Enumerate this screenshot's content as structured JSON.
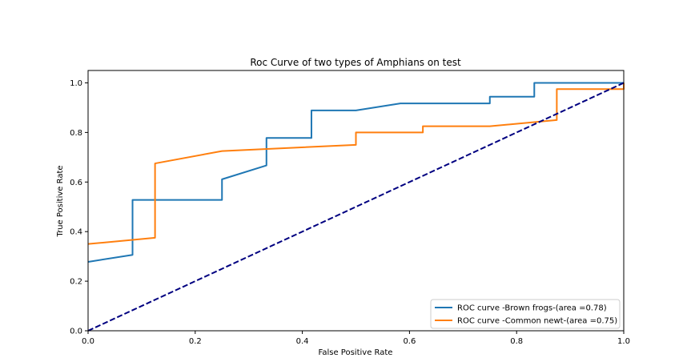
{
  "chart_data": {
    "type": "line",
    "title": "Roc Curve of two types of Amphians on test",
    "xlabel": "False Positive Rate",
    "ylabel": "True Positive Rate",
    "xlim": [
      0,
      1
    ],
    "ylim": [
      0,
      1.05
    ],
    "xticks": [
      "0.0",
      "0.2",
      "0.4",
      "0.6",
      "0.8",
      "1.0"
    ],
    "yticks": [
      "0.0",
      "0.2",
      "0.4",
      "0.6",
      "0.8",
      "1.0"
    ],
    "grid": false,
    "legend_position": "lower-right",
    "series": [
      {
        "name": "ROC curve -Brown frogs-(area =0.78)",
        "color": "#1f77b4",
        "x": [
          0,
          0.083,
          0.083,
          0.25,
          0.25,
          0.333,
          0.333,
          0.417,
          0.417,
          0.5,
          0.583,
          0.75,
          0.75,
          0.833,
          0.833,
          1.0
        ],
        "y": [
          0.278,
          0.306,
          0.528,
          0.528,
          0.611,
          0.667,
          0.778,
          0.778,
          0.889,
          0.889,
          0.917,
          0.917,
          0.944,
          0.944,
          1.0,
          1.0
        ]
      },
      {
        "name": "ROC curve -Common newt-(area =0.75)",
        "color": "#ff7f0e",
        "x": [
          0,
          0.125,
          0.125,
          0.25,
          0.5,
          0.5,
          0.625,
          0.625,
          0.75,
          0.875,
          0.875,
          1.0,
          1.0
        ],
        "y": [
          0.35,
          0.375,
          0.675,
          0.725,
          0.75,
          0.8,
          0.8,
          0.825,
          0.825,
          0.85,
          0.975,
          0.975,
          1.0
        ]
      },
      {
        "color": "#000080",
        "dashed": true,
        "x": [
          0,
          1
        ],
        "y": [
          0,
          1
        ]
      }
    ]
  }
}
